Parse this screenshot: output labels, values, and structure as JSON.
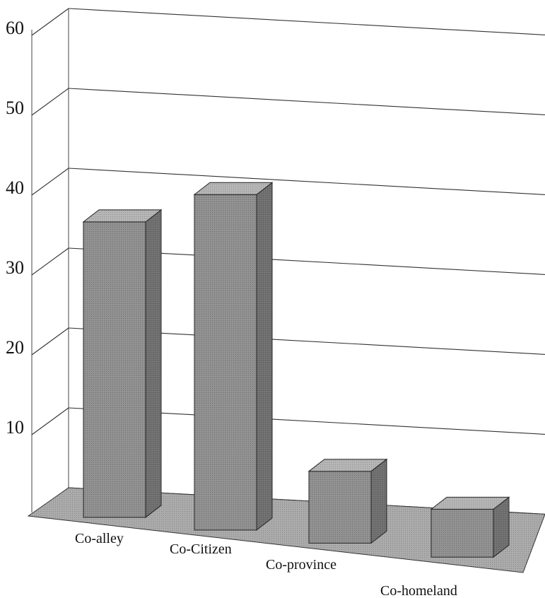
{
  "chart_data": {
    "type": "bar",
    "categories": [
      "Co-alley",
      "Co-Citizen",
      "Co-province",
      "Co-homeland"
    ],
    "values": [
      37,
      42,
      9,
      6
    ],
    "title": "",
    "xlabel": "",
    "ylabel": "",
    "ylim": [
      0,
      60
    ],
    "yticks": [
      10,
      20,
      30,
      40,
      50,
      60
    ],
    "grid": true,
    "style": "3d",
    "colors": {
      "bar_front": "#8f8f8f",
      "bar_top": "#b4b4b4",
      "bar_side": "#6f6f6f",
      "floor": "#a9a9a9"
    }
  }
}
